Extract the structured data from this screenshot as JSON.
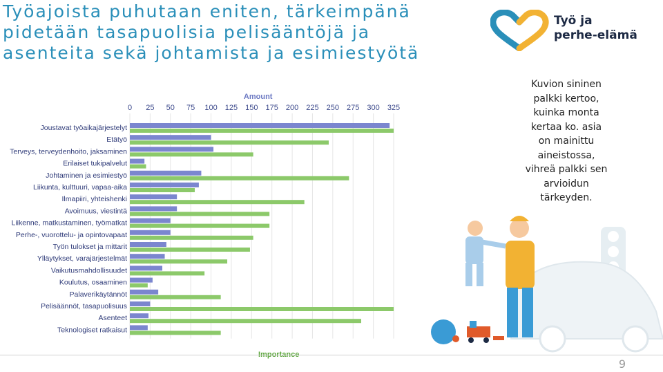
{
  "slide": {
    "title_lines": [
      "Työajoista puhutaan eniten, tärkeimpänä",
      "pidetään tasapuolisia pelisääntöjä ja",
      "asenteita sekä johtamista ja esimiestyötä"
    ],
    "logo_lines": [
      "Työ ja",
      "perhe-elämä"
    ],
    "caption_lines": [
      "Kuvion sininen",
      "palkki kertoo,",
      "kuinka monta",
      "kertaa ko. asia",
      "on mainittu",
      "aineistossa,",
      "vihreä palkki sen",
      "arvioidun",
      "tärkeyden."
    ],
    "page_number": "9"
  },
  "colors": {
    "title": "#2a8fb9",
    "amount_bar": "#7b86cf",
    "importance_bar": "#8cc96a"
  },
  "chart_data": {
    "type": "bar",
    "orientation": "horizontal",
    "top_axis_label": "Amount",
    "bottom_axis_label": "Importance",
    "xlim": [
      0,
      325
    ],
    "ticks": [
      0,
      25,
      50,
      75,
      100,
      125,
      150,
      175,
      200,
      225,
      250,
      275,
      300,
      325
    ],
    "categories": [
      "Joustavat työaikajärjestelyt",
      "Etätyö",
      "Terveys, terveydenhoito, jaksaminen",
      "Erilaiset tukipalvelut",
      "Johtaminen ja esimiestyö",
      "Liikunta, kulttuuri, vapaa-aika",
      "Ilmapiiri, yhteishenki",
      "Avoimuus, viestintä",
      "Liikenne, matkustaminen, työmatkat",
      "Perhe-, vuorottelu- ja opintovapaat",
      "Työn tulokset ja mittarit",
      "Ylläytykset, varajärjestelmät",
      "Vaikutusmahdollisuudet",
      "Koulutus, osaaminen",
      "Palaverikäytännöt",
      "Pelisäännöt, tasapuolisuus",
      "Asenteet",
      "Teknologiset ratkaisut"
    ],
    "series": [
      {
        "name": "Amount",
        "values": [
          320,
          100,
          103,
          18,
          88,
          85,
          58,
          58,
          50,
          50,
          45,
          43,
          40,
          28,
          35,
          25,
          23,
          22
        ]
      },
      {
        "name": "Importance",
        "values": [
          325,
          245,
          152,
          20,
          270,
          80,
          215,
          172,
          172,
          152,
          148,
          120,
          92,
          22,
          112,
          325,
          285,
          112
        ]
      }
    ]
  }
}
